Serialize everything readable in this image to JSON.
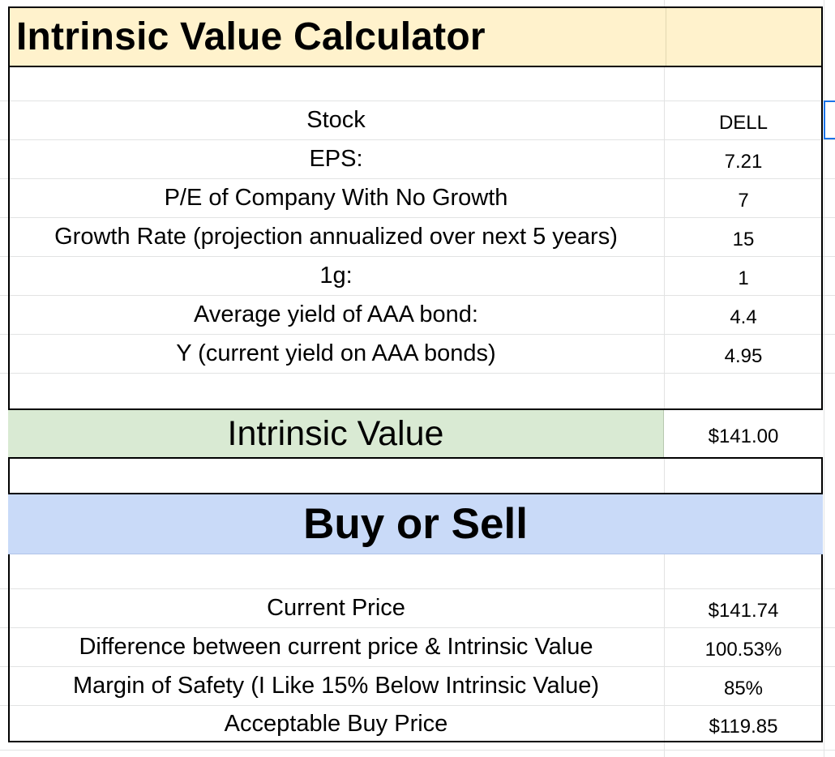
{
  "title": "Intrinsic Value Calculator",
  "inputs": [
    {
      "label": "Stock",
      "value": "DELL"
    },
    {
      "label": "EPS:",
      "value": "7.21"
    },
    {
      "label": "P/E of Company With No Growth",
      "value": "7"
    },
    {
      "label": "Growth Rate (projection annualized over next 5 years)",
      "value": "15"
    },
    {
      "label": "1g:",
      "value": "1"
    },
    {
      "label": "Average yield of AAA bond:",
      "value": "4.4"
    },
    {
      "label": "Y (current yield on AAA bonds)",
      "value": "4.95"
    }
  ],
  "intrinsic": {
    "label": "Intrinsic Value",
    "value": "$141.00"
  },
  "buy_sell": {
    "heading": "Buy or Sell"
  },
  "results": [
    {
      "label": "Current Price",
      "value": "$141.74"
    },
    {
      "label": "Difference between current price & Intrinsic Value",
      "value": "100.53%"
    },
    {
      "label": "Margin of Safety (I Like 15% Below Intrinsic Value)",
      "value": "85%"
    },
    {
      "label": "Acceptable Buy Price",
      "value": "$119.85"
    }
  ]
}
